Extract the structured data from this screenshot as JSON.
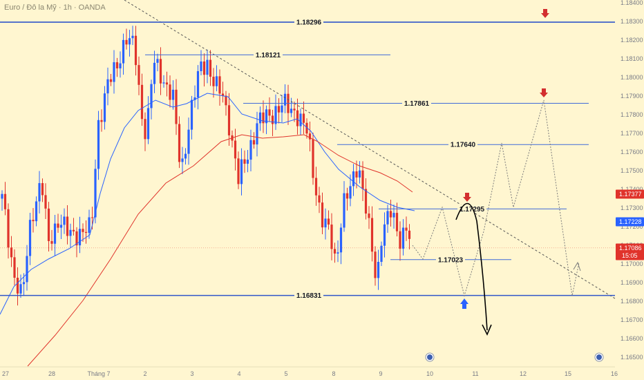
{
  "header": {
    "symbol_line": "Euro / Đô la Mỹ · 1h · OANDA"
  },
  "chart_data": {
    "type": "candlestick",
    "y_axis": {
      "position": "right",
      "range": [
        1.1645,
        1.1843
      ],
      "ticks": [
        "1.18400",
        "1.18300",
        "1.18200",
        "1.18100",
        "1.18000",
        "1.17900",
        "1.17800",
        "1.17700",
        "1.17600",
        "1.17500",
        "1.17400",
        "1.17300",
        "1.17200",
        "1.17100",
        "1.17000",
        "1.16900",
        "1.16800",
        "1.16700",
        "1.16600",
        "1.16500"
      ]
    },
    "x_axis": {
      "ticks": [
        "27",
        "28",
        "Tháng 7",
        "2",
        "3",
        "4",
        "5",
        "8",
        "9",
        "10",
        "11",
        "12",
        "15",
        "16"
      ]
    },
    "levels": [
      {
        "label": "1.18296",
        "value": 1.18296,
        "style": "major"
      },
      {
        "label": "1.18121",
        "value": 1.18121,
        "style": "minor"
      },
      {
        "label": "1.17861",
        "value": 1.17861,
        "style": "minor"
      },
      {
        "label": "1.17640",
        "value": 1.1764,
        "style": "minor"
      },
      {
        "label": "1.17295",
        "value": 1.17295,
        "style": "minor"
      },
      {
        "label": "1.17023",
        "value": 1.17023,
        "style": "minor"
      },
      {
        "label": "1.16831",
        "value": 1.16831,
        "style": "major"
      }
    ],
    "price_tags": [
      {
        "label": "1.17377",
        "value": 1.17377,
        "color": "#e0332b"
      },
      {
        "label": "1.17228",
        "value": 1.17228,
        "color": "#2962ff"
      },
      {
        "label": "1.17086",
        "sub": "15:05",
        "value": 1.17086,
        "color": "#e0332b"
      }
    ],
    "current_price": 1.17086,
    "ema_fast_color": "#2962ff",
    "ema_slow_color": "#e0332b",
    "up_color": "#2962ff",
    "down_color": "#e0332b"
  }
}
